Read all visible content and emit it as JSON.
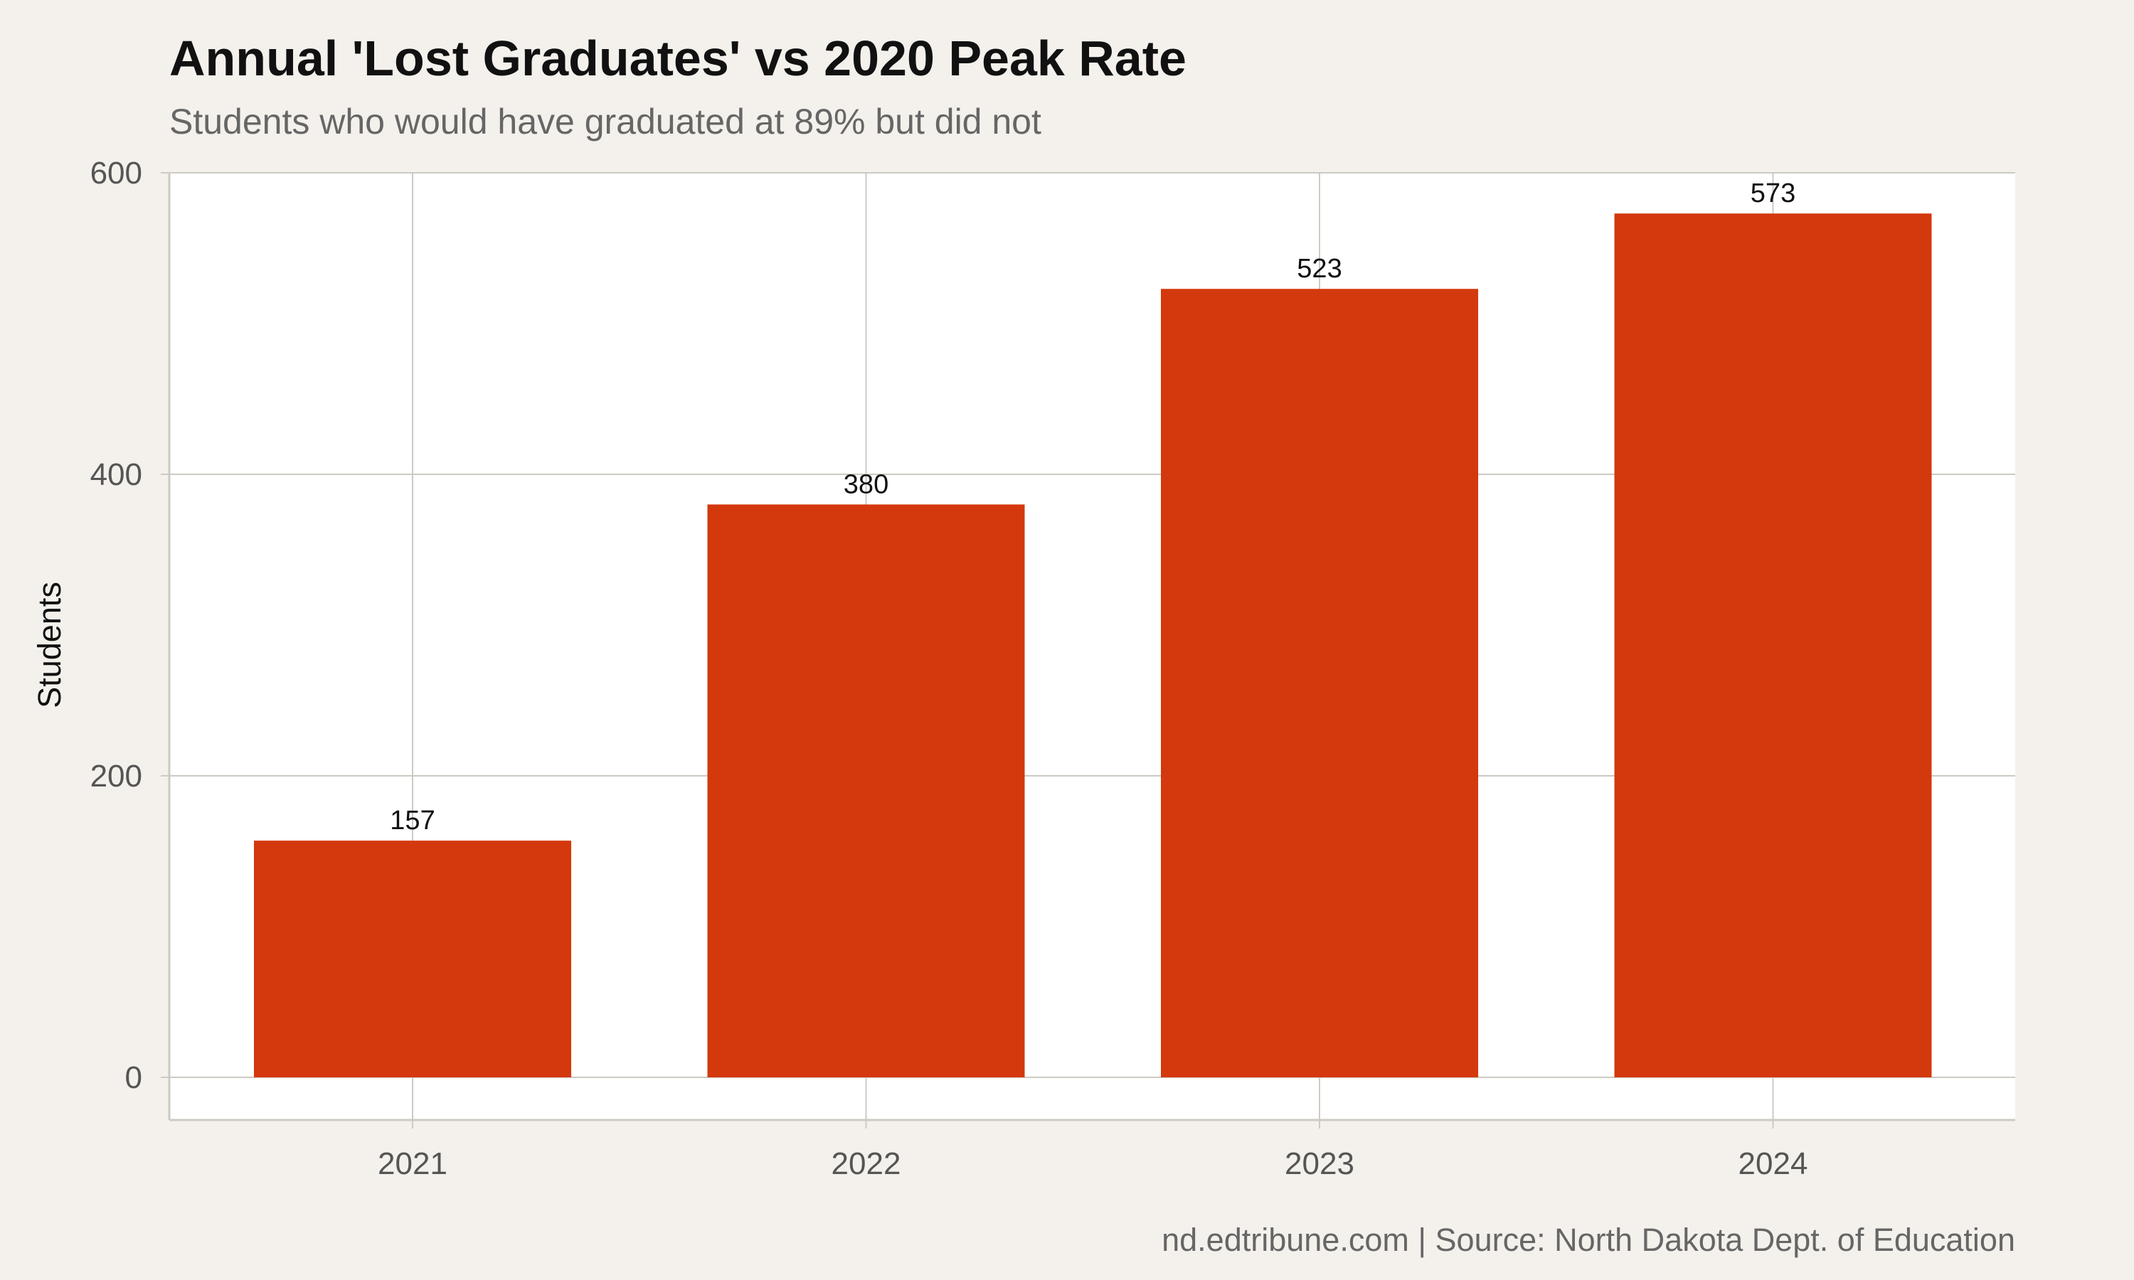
{
  "title": "Annual 'Lost Graduates' vs 2020 Peak Rate",
  "subtitle": "Students who would have graduated at 89% but did not",
  "caption": "nd.edtribune.com | Source: North Dakota Dept. of Education",
  "colors": {
    "bar": "#d4380d",
    "background": "#f4f1ec",
    "panel": "#ffffff",
    "grid": "#cccac2"
  },
  "chart_data": {
    "type": "bar",
    "categories": [
      "2021",
      "2022",
      "2023",
      "2024"
    ],
    "values": [
      157,
      380,
      523,
      573
    ],
    "data_labels": [
      "157",
      "380",
      "523",
      "573"
    ],
    "title": "Annual 'Lost Graduates' vs 2020 Peak Rate",
    "subtitle": "Students who would have graduated at 89% but did not",
    "xlabel": "",
    "ylabel": "Students",
    "ylim": [
      0,
      600
    ],
    "yticks": [
      0,
      200,
      400,
      600
    ],
    "grid": true,
    "legend": "none"
  }
}
